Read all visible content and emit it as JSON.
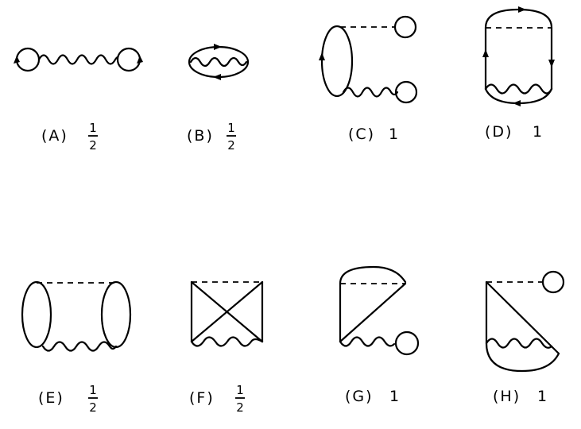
{
  "diagrams": [
    {
      "letter": "(A)",
      "weight": {
        "num": "1",
        "den": "2"
      }
    },
    {
      "letter": "(B)",
      "weight": {
        "num": "1",
        "den": "2"
      }
    },
    {
      "letter": "(C)",
      "weight": {
        "whole": "1"
      }
    },
    {
      "letter": "(D)",
      "weight": {
        "whole": "1"
      }
    },
    {
      "letter": "(E)",
      "weight": {
        "num": "1",
        "den": "2"
      }
    },
    {
      "letter": "(F)",
      "weight": {
        "num": "1",
        "den": "2"
      }
    },
    {
      "letter": "(G)",
      "weight": {
        "whole": "1"
      }
    },
    {
      "letter": "(H)",
      "weight": {
        "whole": "1"
      }
    }
  ]
}
